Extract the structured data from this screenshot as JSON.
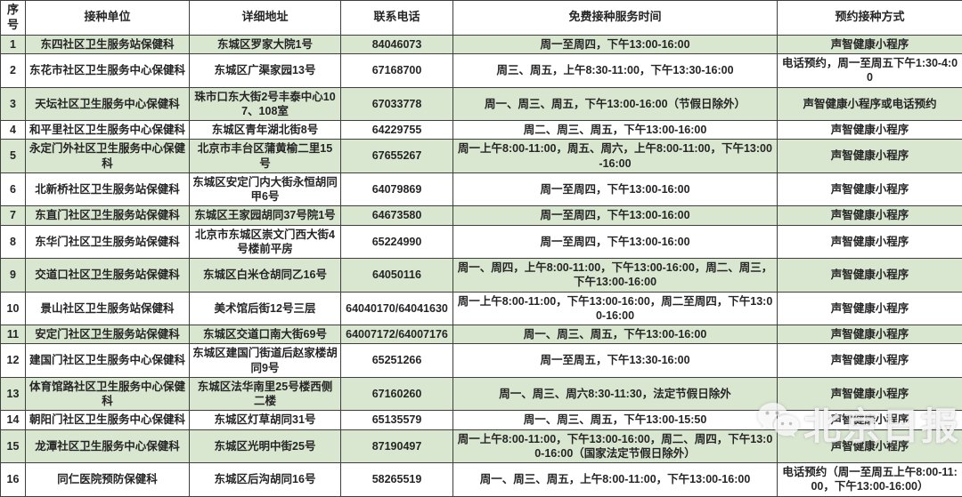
{
  "colors": {
    "row_green": "#d9e6d0",
    "row_white": "#ffffff",
    "border": "#3f3f3f",
    "text": "#252525",
    "watermark": "rgba(255,255,255,0.82)"
  },
  "watermark": {
    "icon": "wechat-icon",
    "text": "北京日报"
  },
  "table": {
    "columns": [
      "序号",
      "接种单位",
      "详细地址",
      "联系电话",
      "免费接种服务时间",
      "预约接种方式"
    ],
    "rows": [
      {
        "no": "1",
        "unit": "东四社区卫生服务站保健科",
        "address": "东城区罗家大院1号",
        "phone": "84046073",
        "time": "周一至周四，下午13:00-16:00",
        "method": "声智健康小程序"
      },
      {
        "no": "2",
        "unit": "东花市社区卫生服务中心保健科",
        "address": "东城区广渠家园13号",
        "phone": "67168700",
        "time": "周三、周五，上午8:30-11:00，下午13:30-16:00",
        "method": "电话预约，周一至周五下午1:30-4:00"
      },
      {
        "no": "3",
        "unit": "天坛社区卫生服务中心保健科",
        "address": "珠市口东大街2号丰泰中心107、108室",
        "phone": "67033778",
        "time": "周一、周三、周五，下午13:00-16:00（节假日除外）",
        "method": "声智健康小程序或电话预约"
      },
      {
        "no": "4",
        "unit": "和平里社区卫生服务中心保健科",
        "address": "东城区青年湖北街8号",
        "phone": "64229755",
        "time": "周二、周三、周五，下午13:00-16:00",
        "method": "声智健康小程序"
      },
      {
        "no": "5",
        "unit": "永定门外社区卫生服务中心保健科",
        "address": "北京市丰台区蒲黄榆二里15号",
        "phone": "67655267",
        "time": "周一上午8:00-11:00，周五、周六，上午8:00-11:00，下午13:00-16:00",
        "method": "声智健康小程序"
      },
      {
        "no": "6",
        "unit": "北新桥社区卫生服务站保健科",
        "address": "东城区安定门内大街永恒胡同甲6号",
        "phone": "64079869",
        "time": "周一至周四，下午13:00-16:00",
        "method": "声智健康小程序"
      },
      {
        "no": "7",
        "unit": "东直门社区卫生服务站保健科",
        "address": "东城区王家园胡同37号院1号",
        "phone": "64673580",
        "time": "周一至周四，下午13:00-16:00",
        "method": "声智健康小程序"
      },
      {
        "no": "8",
        "unit": "东华门社区卫生服务站保健科",
        "address": "北京市东城区崇文门西大街4号楼前平房",
        "phone": "65224990",
        "time": "周一至周四，下午13:00-16:00",
        "method": "声智健康小程序"
      },
      {
        "no": "9",
        "unit": "交道口社区卫生服务站保健科",
        "address": "东城区白米仓胡同乙16号",
        "phone": "64050116",
        "time": "周一、周四，上午8:00-11:00，下午13:00-16:00，周二、周三，下午13:00-16:00",
        "method": "声智健康小程序"
      },
      {
        "no": "10",
        "unit": "景山社区卫生服务站保健科",
        "address": "美术馆后街12号三层",
        "phone": "64040170/64041630",
        "time": "周一上午8:00-11:00，下午13:00-16:00，周二至周四，下午13:00-16:00",
        "method": "声智健康小程序"
      },
      {
        "no": "11",
        "unit": "安定门社区卫生服务站保健科",
        "address": "东城区交道口南大街69号",
        "phone": "64007172/64007176",
        "time": "周一、周三、周五，下午13:00-16:00",
        "method": "声智健康小程序"
      },
      {
        "no": "12",
        "unit": "建国门社区卫生服务中心保健科",
        "address": "东城区建国门街道后赵家楼胡同9号",
        "phone": "65251266",
        "time": "周一至周五，下午13:30-16:00",
        "method": "声智健康小程序"
      },
      {
        "no": "13",
        "unit": "体育馆路社区卫生服务中心保健科",
        "address": "东城区法华南里25号楼西侧二楼",
        "phone": "67160260",
        "time": "周一、周三、周六8:30-11:30，法定节假日除外",
        "method": "声智健康小程序"
      },
      {
        "no": "14",
        "unit": "朝阳门社区卫生服务中心保健科",
        "address": "东城区灯草胡同31号",
        "phone": "65135579",
        "time": "周一、周三、周五，下午13:00-15:50",
        "method": "声智健康小程序"
      },
      {
        "no": "15",
        "unit": "龙潭社区卫生服务中心保健科",
        "address": "东城区光明中街25号",
        "phone": "87190497",
        "time": "周一上午8:00-11:00，下午13:00-16:00，周二、周四，下午13:00-16:00（国家法定节假日除外）",
        "method": "声智健康小程序"
      },
      {
        "no": "16",
        "unit": "同仁医院预防保健科",
        "address": "东城区后沟胡同16号",
        "phone": "58265519",
        "time": "周一、周三、周五，上午8:00-11:00，下午13:00-16:00",
        "method": "电话预约（周一至周五上午8:00-11:00，下午13:00-16:00）"
      }
    ]
  }
}
